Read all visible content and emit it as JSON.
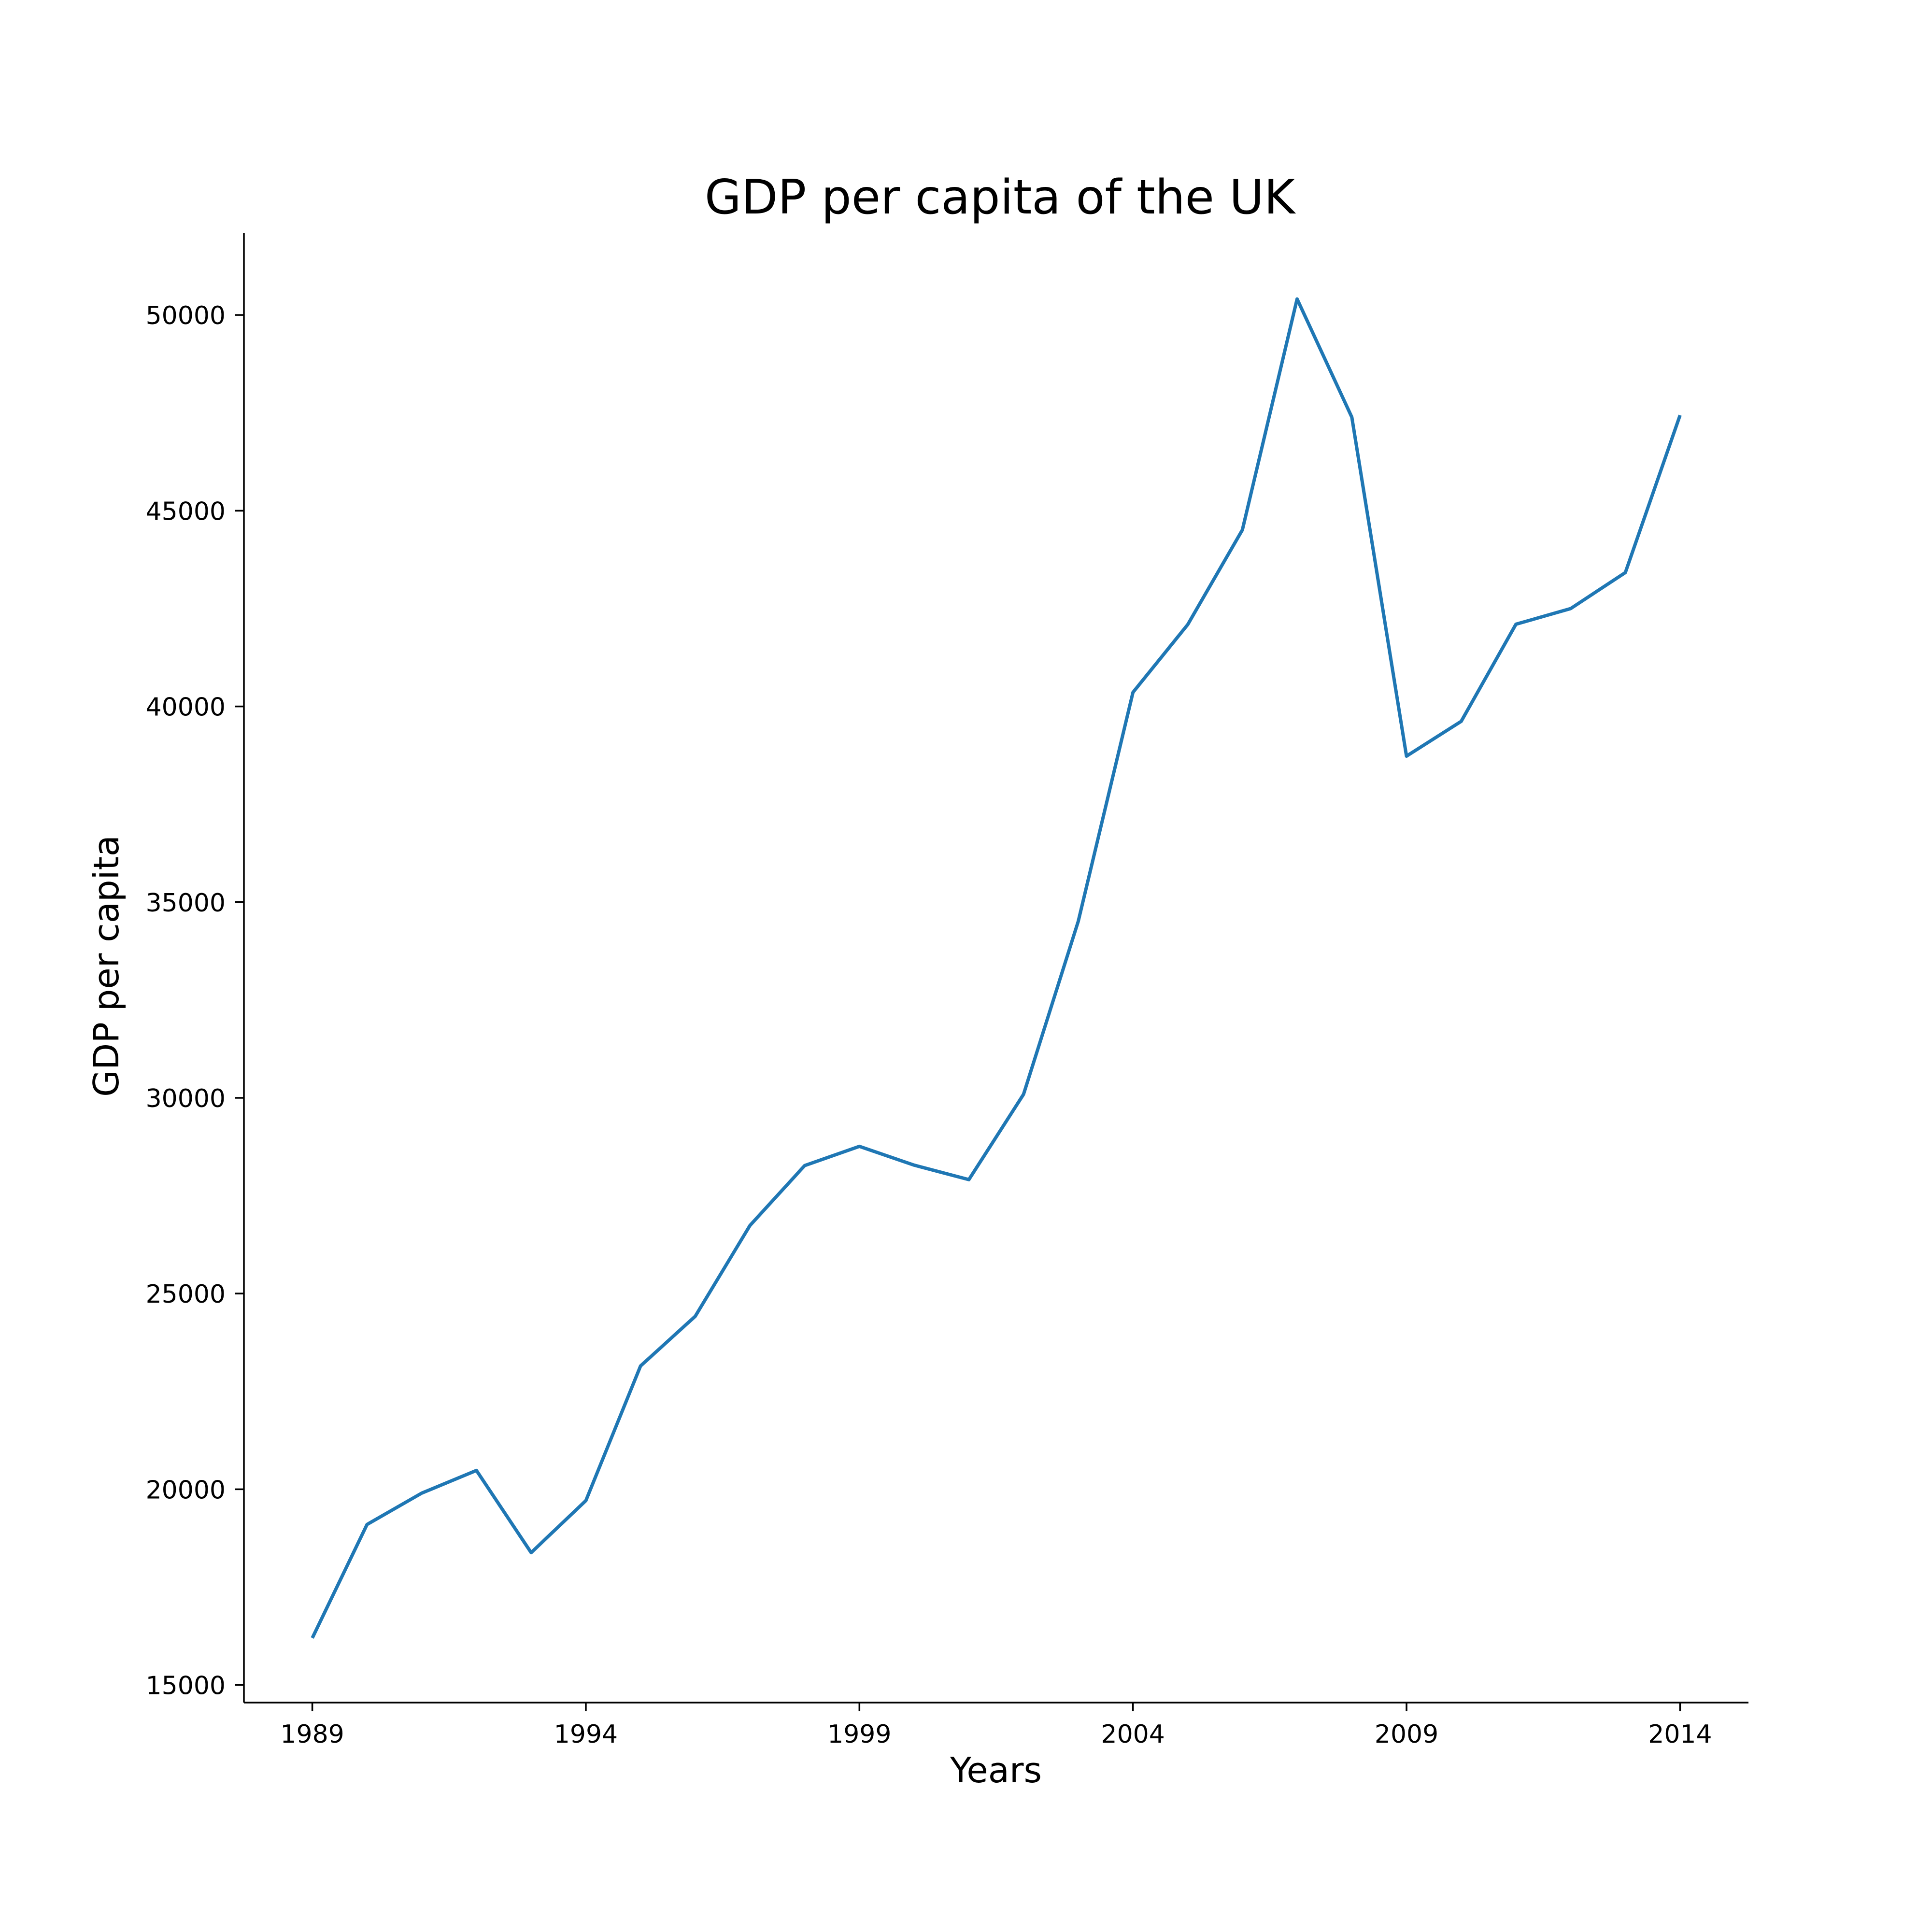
{
  "chart_data": {
    "type": "line",
    "title": "GDP per capita of the UK",
    "xlabel": "Years",
    "ylabel": "GDP per capita",
    "xlim": [
      1987.75,
      2015.25
    ],
    "ylim": [
      14550,
      52100
    ],
    "grid": false,
    "legend": "none",
    "x_ticks": [
      1989,
      1994,
      1999,
      2004,
      2009,
      2014
    ],
    "y_ticks": [
      15000,
      20000,
      25000,
      30000,
      35000,
      40000,
      45000,
      50000
    ],
    "series": [
      {
        "color": "#1f77b4",
        "x": [
          1989,
          1990,
          1991,
          1992,
          1993,
          1994,
          1995,
          1996,
          1997,
          1998,
          1999,
          2000,
          2001,
          2002,
          2003,
          2004,
          2005,
          2006,
          2007,
          2008,
          2009,
          2010,
          2011,
          2012,
          2013,
          2014
        ],
        "values": [
          16200,
          19100,
          19900,
          20480,
          18380,
          19710,
          23150,
          24420,
          26740,
          28270,
          28760,
          28280,
          27910,
          30090,
          34510,
          40360,
          42090,
          44510,
          50410,
          47390,
          38730,
          39620,
          42100,
          42500,
          43420,
          47440
        ]
      }
    ]
  }
}
